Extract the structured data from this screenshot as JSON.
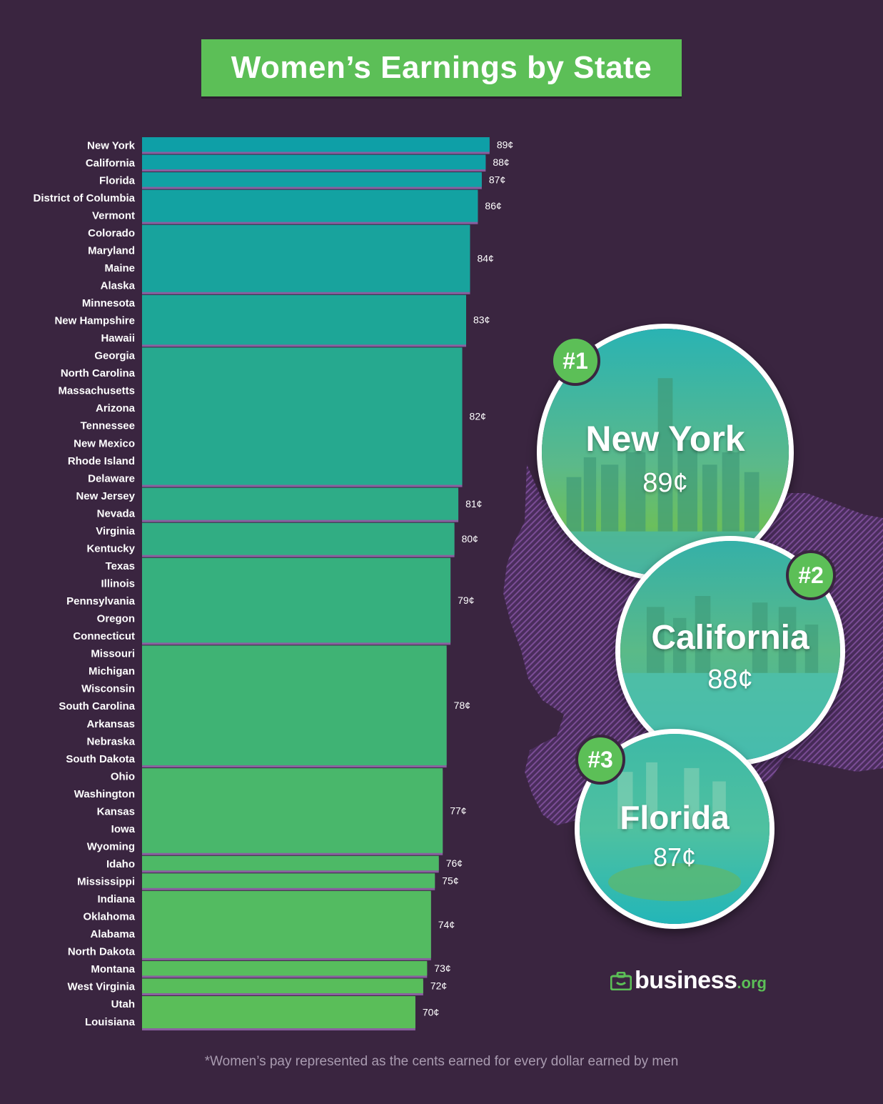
{
  "chart_data": {
    "type": "bar",
    "title": "Women’s Earnings by State",
    "orientation": "horizontal",
    "unit": "¢",
    "groups": [
      {
        "states": [
          "New York"
        ],
        "value": 89,
        "label": "89¢"
      },
      {
        "states": [
          "California"
        ],
        "value": 88,
        "label": "88¢"
      },
      {
        "states": [
          "Florida"
        ],
        "value": 87,
        "label": "87¢"
      },
      {
        "states": [
          "District of Columbia",
          "Vermont"
        ],
        "value": 86,
        "label": "86¢"
      },
      {
        "states": [
          "Colorado",
          "Maryland",
          "Maine",
          "Alaska"
        ],
        "value": 84,
        "label": "84¢"
      },
      {
        "states": [
          "Minnesota",
          "New Hampshire",
          "Hawaii"
        ],
        "value": 83,
        "label": "83¢"
      },
      {
        "states": [
          "Georgia",
          "North Carolina",
          "Massachusetts",
          "Arizona",
          "Tennessee",
          "New Mexico",
          "Rhode Island",
          "Delaware"
        ],
        "value": 82,
        "label": "82¢"
      },
      {
        "states": [
          "New Jersey",
          "Nevada"
        ],
        "value": 81,
        "label": "81¢"
      },
      {
        "states": [
          "Virginia",
          "Kentucky"
        ],
        "value": 80,
        "label": "80¢"
      },
      {
        "states": [
          "Texas",
          "Illinois",
          "Pennsylvania",
          "Oregon",
          "Connecticut"
        ],
        "value": 79,
        "label": "79¢"
      },
      {
        "states": [
          "Missouri",
          "Michigan",
          "Wisconsin",
          "South Carolina",
          "Arkansas",
          "Nebraska",
          "South Dakota"
        ],
        "value": 78,
        "label": "78¢"
      },
      {
        "states": [
          "Ohio",
          "Washington",
          "Kansas",
          "Iowa",
          "Wyoming"
        ],
        "value": 77,
        "label": "77¢"
      },
      {
        "states": [
          "Idaho"
        ],
        "value": 76,
        "label": "76¢"
      },
      {
        "states": [
          "Mississippi"
        ],
        "value": 75,
        "label": "75¢"
      },
      {
        "states": [
          "Indiana",
          "Oklahoma",
          "Alabama",
          "North Dakota"
        ],
        "value": 74,
        "label": "74¢"
      },
      {
        "states": [
          "Montana"
        ],
        "value": 73,
        "label": "73¢"
      },
      {
        "states": [
          "West Virginia"
        ],
        "value": 72,
        "label": "72¢"
      },
      {
        "states": [
          "Utah",
          "Louisiana"
        ],
        "value": 70,
        "label": "70¢"
      }
    ],
    "colors": {
      "top": "#0d9fa8",
      "bottom": "#5cbf57",
      "bar_shadow": "#8a5fa0"
    }
  },
  "highlights": [
    {
      "rank": "#1",
      "name": "New York",
      "value": "89¢"
    },
    {
      "rank": "#2",
      "name": "California",
      "value": "88¢"
    },
    {
      "rank": "#3",
      "name": "Florida",
      "value": "87¢"
    }
  ],
  "logo": {
    "main": "business",
    "tld": ".org"
  },
  "footnote": "*Women’s pay represented as the cents earned for every dollar earned by men",
  "colors": {
    "background": "#3a2540",
    "accent": "#5cbf57",
    "map": "#6a3f82"
  }
}
